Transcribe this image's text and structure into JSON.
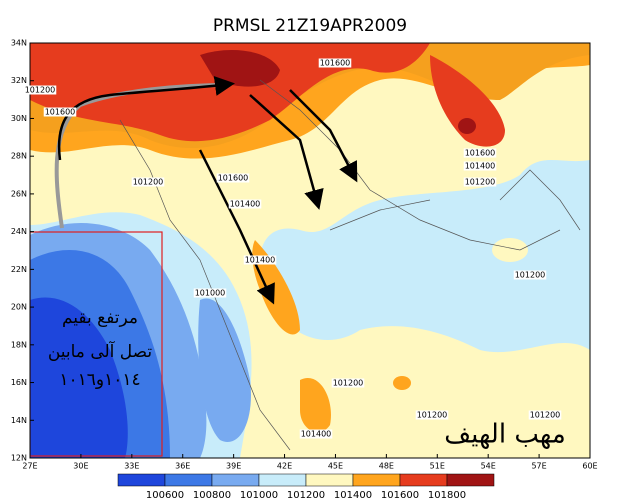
{
  "title": "PRMSL 21Z19APR2009",
  "lat_labels": [
    "34N",
    "32N",
    "30N",
    "28N",
    "26N",
    "24N",
    "22N",
    "20N",
    "18N",
    "16N",
    "14N",
    "12N"
  ],
  "lon_labels": [
    "27E",
    "30E",
    "33E",
    "36E",
    "39E",
    "42E",
    "45E",
    "48E",
    "51E",
    "54E",
    "57E",
    "60E"
  ],
  "colorbar": {
    "labels": [
      "100600",
      "100800",
      "101000",
      "101200",
      "101400",
      "101600",
      "101800"
    ]
  },
  "contour_labels": [
    "101200",
    "101600",
    "101600",
    "101600",
    "101400",
    "101200",
    "101200",
    "101600",
    "101400",
    "101400",
    "101000",
    "101200",
    "101200",
    "101400",
    "101200",
    "101200"
  ],
  "annotation": {
    "lines": [
      "مرتفع بقيم",
      "تصل آلى مابين",
      "١٠١٤و١٠١٦"
    ],
    "corner": "مهب الهيف"
  }
}
